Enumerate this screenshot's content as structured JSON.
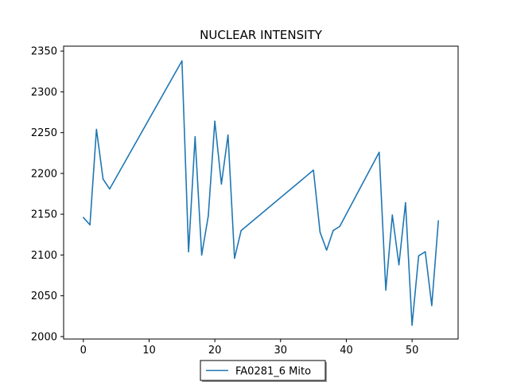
{
  "chart_data": {
    "type": "line",
    "title": "NUCLEAR INTENSITY",
    "xlabel": "",
    "ylabel": "",
    "xlim": [
      -3,
      57
    ],
    "ylim": [
      1997,
      2356
    ],
    "xticks": [
      0,
      10,
      20,
      30,
      40,
      50
    ],
    "yticks": [
      2000,
      2050,
      2100,
      2150,
      2200,
      2250,
      2300,
      2350
    ],
    "grid": false,
    "legend_position": "bottom-center",
    "series": [
      {
        "name": "FA0281_6 Mito",
        "color": "#1f77b4",
        "points": [
          [
            0,
            2146
          ],
          [
            1,
            2137
          ],
          [
            2,
            2254
          ],
          [
            3,
            2193
          ],
          [
            4,
            2181
          ],
          [
            15,
            2338
          ],
          [
            16,
            2104
          ],
          [
            17,
            2245
          ],
          [
            18,
            2100
          ],
          [
            19,
            2148
          ],
          [
            20,
            2264
          ],
          [
            21,
            2187
          ],
          [
            22,
            2247
          ],
          [
            23,
            2096
          ],
          [
            24,
            2130
          ],
          [
            35,
            2204
          ],
          [
            36,
            2128
          ],
          [
            37,
            2106
          ],
          [
            38,
            2130
          ],
          [
            39,
            2135
          ],
          [
            45,
            2226
          ],
          [
            46,
            2057
          ],
          [
            47,
            2149
          ],
          [
            48,
            2088
          ],
          [
            49,
            2164
          ],
          [
            50,
            2014
          ],
          [
            51,
            2099
          ],
          [
            52,
            2104
          ],
          [
            53,
            2038
          ],
          [
            54,
            2142
          ]
        ]
      }
    ]
  }
}
